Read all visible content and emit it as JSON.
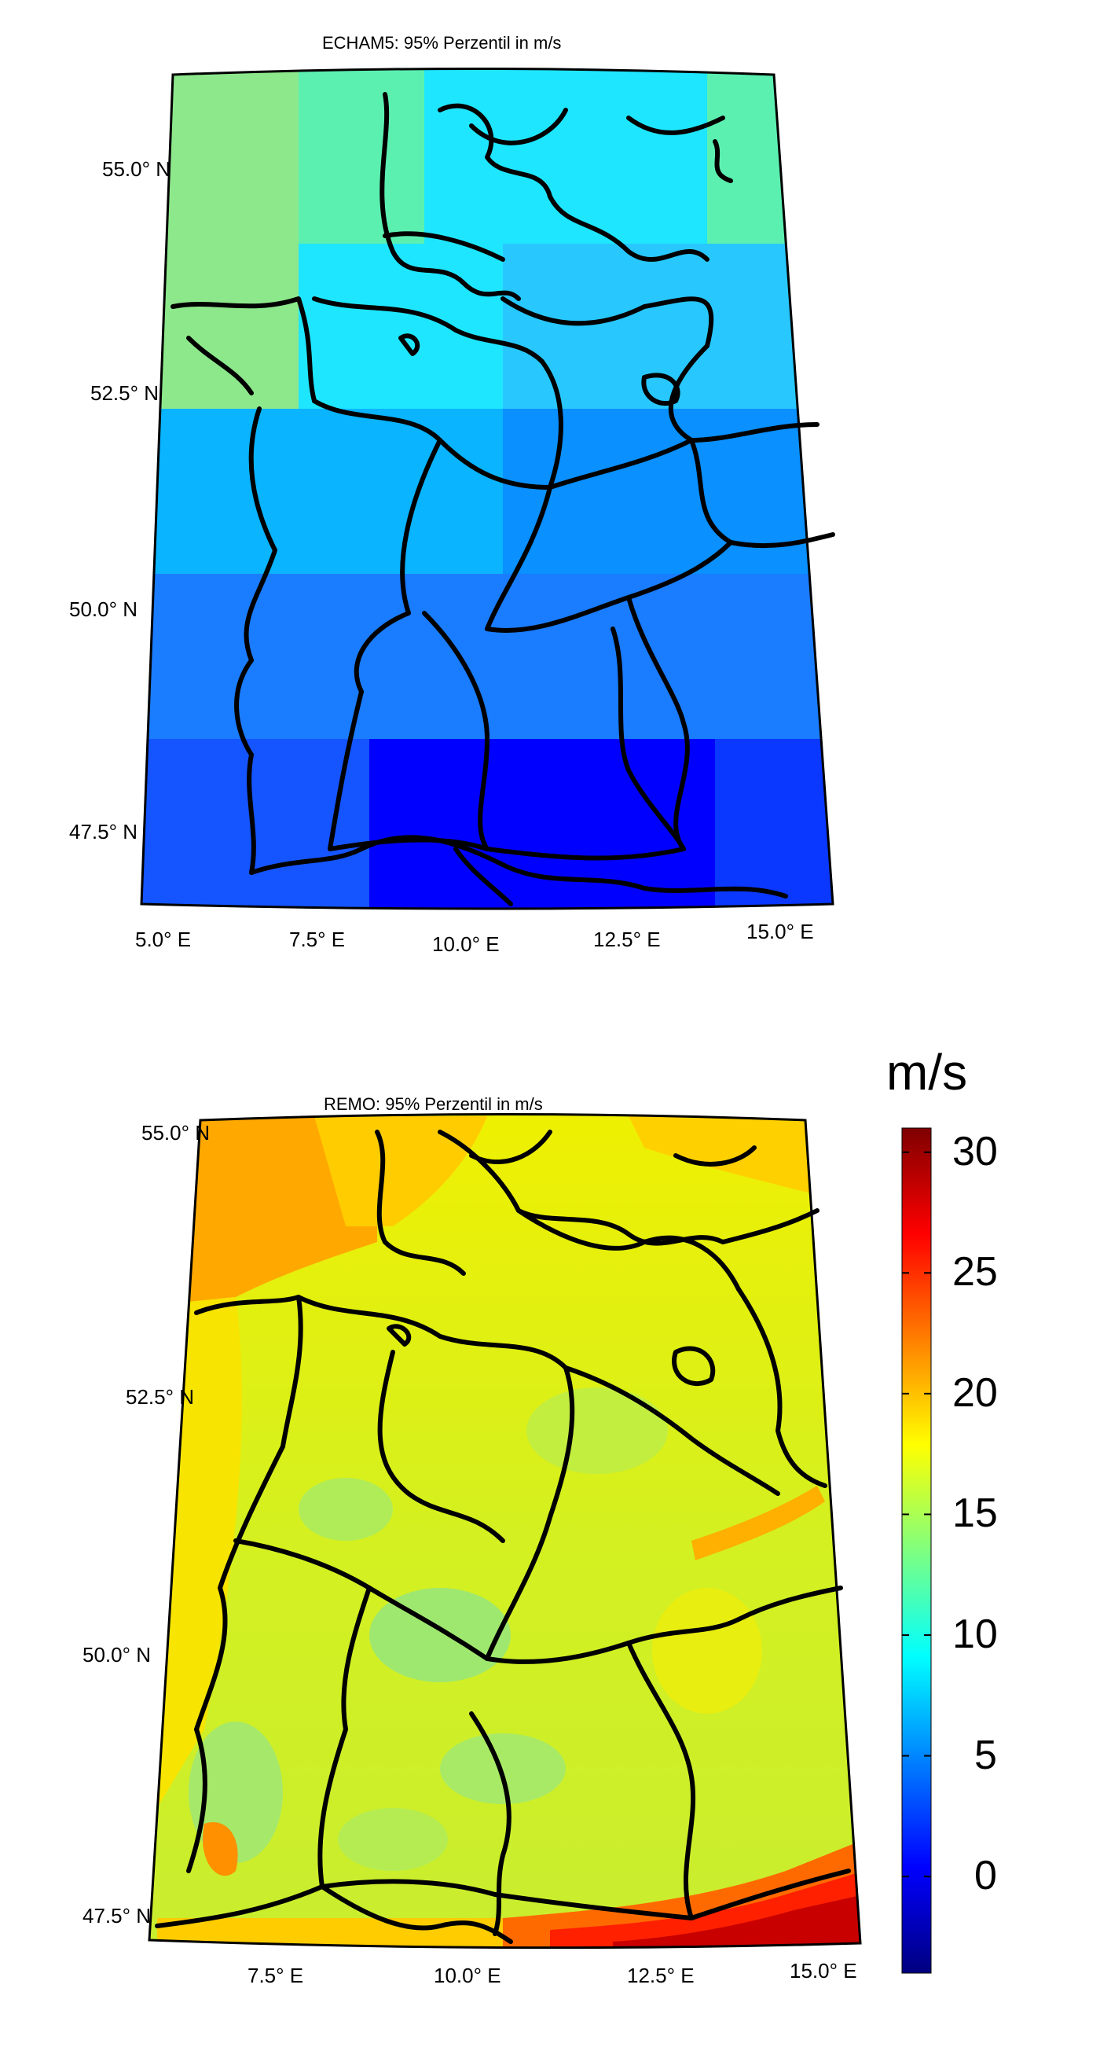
{
  "maps": [
    {
      "id": "echam5",
      "title": "ECHAM5: 95% Perzentil in m/s",
      "lat_labels": [
        "55.0° N",
        "52.5° N",
        "50.0° N",
        "47.5° N"
      ],
      "lon_labels": [
        "5.0° E",
        "7.5° E",
        "10.0° E",
        "12.5° E",
        "15.0° E"
      ]
    },
    {
      "id": "remo",
      "title": "REMO: 95% Perzentil in m/s",
      "lat_labels": [
        "55.0° N",
        "52.5° N",
        "50.0° N",
        "47.5° N"
      ],
      "lon_labels": [
        "7.5° E",
        "10.0° E",
        "12.5° E",
        "15.0° E"
      ]
    }
  ],
  "colorbar": {
    "unit": "m/s",
    "min": -4,
    "max": 31,
    "ticks": [
      "30",
      "25",
      "20",
      "15",
      "10",
      "5",
      "0"
    ],
    "colormap": [
      "#00007f",
      "#0000ff",
      "#007fff",
      "#00ffff",
      "#7fff7f",
      "#ffff00",
      "#ff7f00",
      "#ff0000",
      "#7f0000"
    ]
  },
  "colors": {
    "border": "#000000",
    "echam5_grid": [
      "#2a6bff",
      "#0000ff",
      "#1555ff",
      "#0a90ff",
      "#28c8ff",
      "#1fe6ff",
      "#5cf0b0",
      "#8de88c"
    ]
  }
}
